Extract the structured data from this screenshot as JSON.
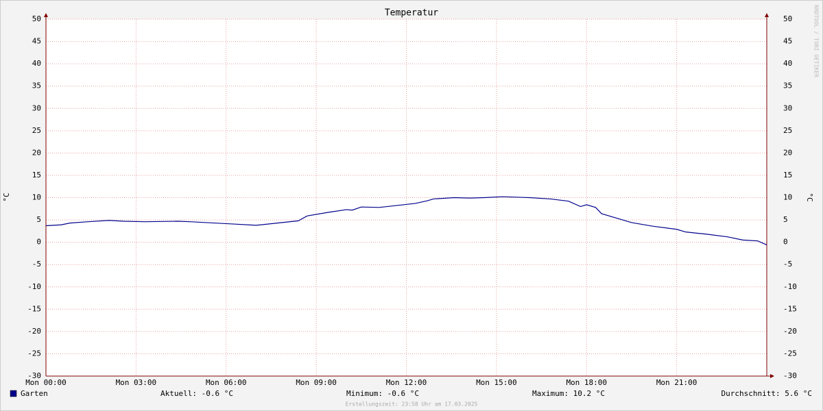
{
  "chart_data": {
    "type": "line",
    "title": "Temperatur",
    "y_label": "°C",
    "y2_label": "°C",
    "watermark": "RRDTOOL / TOBI OETIKER",
    "footer": "Erstellungszeit: 23:58 Uhr am 17.03.2025",
    "xlim": [
      0,
      24
    ],
    "xticks": [
      {
        "value": 0,
        "label": "Mon 00:00"
      },
      {
        "value": 3,
        "label": "Mon 03:00"
      },
      {
        "value": 6,
        "label": "Mon 06:00"
      },
      {
        "value": 9,
        "label": "Mon 09:00"
      },
      {
        "value": 12,
        "label": "Mon 12:00"
      },
      {
        "value": 15,
        "label": "Mon 15:00"
      },
      {
        "value": 18,
        "label": "Mon 18:00"
      },
      {
        "value": 21,
        "label": "Mon 21:00"
      }
    ],
    "ylim": [
      -30,
      50
    ],
    "yticks": [
      -30,
      -25,
      -20,
      -15,
      -10,
      -5,
      0,
      5,
      10,
      15,
      20,
      25,
      30,
      35,
      40,
      45,
      50
    ],
    "grid": true,
    "x": [
      0,
      0.5,
      0.8,
      1.4,
      2.1,
      2.6,
      3.3,
      4.4,
      4.8,
      6.2,
      7.0,
      8.4,
      8.7,
      9.4,
      10.0,
      10.2,
      10.5,
      11.1,
      12.3,
      12.7,
      12.9,
      13.6,
      14.1,
      14.6,
      15.2,
      16.1,
      16.8,
      17.4,
      17.8,
      18.0,
      18.3,
      18.5,
      19.0,
      19.5,
      20.2,
      21.0,
      21.3,
      22.0,
      22.7,
      23.2,
      23.7,
      24.0
    ],
    "series": [
      {
        "name": "Garten",
        "color": "#00008b",
        "values": [
          3.7,
          3.9,
          4.3,
          4.6,
          4.9,
          4.7,
          4.6,
          4.7,
          4.6,
          4.1,
          3.8,
          4.8,
          5.9,
          6.7,
          7.3,
          7.2,
          7.9,
          7.8,
          8.7,
          9.3,
          9.7,
          10.0,
          9.9,
          10.0,
          10.2,
          10.0,
          9.7,
          9.2,
          8.0,
          8.4,
          7.8,
          6.4,
          5.4,
          4.4,
          3.6,
          2.9,
          2.3,
          1.8,
          1.2,
          0.5,
          0.3,
          -0.6
        ]
      }
    ],
    "stats": [
      "Aktuell: -0.6 °C",
      "Minimum: -0.6 °C",
      "Maximum: 10.2 °C",
      "Durchschnitt: 5.6 °C"
    ]
  }
}
